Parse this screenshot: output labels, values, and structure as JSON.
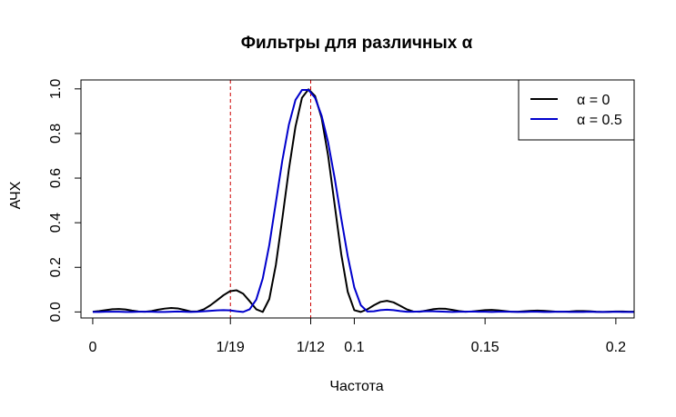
{
  "chart_data": {
    "type": "line",
    "title": "Фильтры для различных α",
    "xlabel": "Частота",
    "ylabel": "АЧХ",
    "xlim": [
      -0.0045,
      0.207
    ],
    "ylim": [
      -0.027,
      1.04
    ],
    "x_ticks": [
      {
        "value": 0,
        "label": "0"
      },
      {
        "value": 0.052632,
        "label": "1/19"
      },
      {
        "value": 0.083333,
        "label": "1/12"
      },
      {
        "value": 0.1,
        "label": "0.1"
      },
      {
        "value": 0.15,
        "label": "0.15"
      },
      {
        "value": 0.2,
        "label": "0.2"
      }
    ],
    "y_ticks": [
      {
        "value": 0,
        "label": "0.0"
      },
      {
        "value": 0.2,
        "label": "0.2"
      },
      {
        "value": 0.4,
        "label": "0.4"
      },
      {
        "value": 0.6,
        "label": "0.6"
      },
      {
        "value": 0.8,
        "label": "0.8"
      },
      {
        "value": 1.0,
        "label": "1.0"
      }
    ],
    "vlines": [
      {
        "x": 0.052632,
        "color": "#cc0000",
        "style": "dashed"
      },
      {
        "x": 0.083333,
        "color": "#cc0000",
        "style": "dashed"
      }
    ],
    "legend": {
      "position": "top-right",
      "entries": [
        {
          "label": "α = 0",
          "color": "#000000"
        },
        {
          "label": "α = 0.5",
          "color": "#0000cc"
        }
      ]
    },
    "series": [
      {
        "name": "α = 0",
        "color": "#000000",
        "x": [
          0,
          0.0025,
          0.005,
          0.0075,
          0.01,
          0.0125,
          0.015,
          0.0175,
          0.02,
          0.0225,
          0.025,
          0.0275,
          0.03,
          0.0325,
          0.035,
          0.0375,
          0.04,
          0.0425,
          0.045,
          0.0475,
          0.05,
          0.0525,
          0.055,
          0.0575,
          0.06,
          0.0625,
          0.065,
          0.0675,
          0.07,
          0.0725,
          0.075,
          0.0775,
          0.08,
          0.0825,
          0.085,
          0.0875,
          0.09,
          0.0925,
          0.095,
          0.0975,
          0.1,
          0.1025,
          0.105,
          0.1075,
          0.11,
          0.1125,
          0.115,
          0.1175,
          0.12,
          0.1225,
          0.125,
          0.1275,
          0.13,
          0.1325,
          0.135,
          0.1375,
          0.14,
          0.1425,
          0.145,
          0.1475,
          0.15,
          0.1525,
          0.155,
          0.1575,
          0.16,
          0.1625,
          0.165,
          0.1675,
          0.17,
          0.1725,
          0.175,
          0.1775,
          0.18,
          0.1825,
          0.185,
          0.1875,
          0.19,
          0.1925,
          0.195,
          0.1975,
          0.2,
          0.2025,
          0.205,
          0.207
        ],
        "y": [
          0.001,
          0.004,
          0.008,
          0.012,
          0.013,
          0.011,
          0.006,
          0.002,
          0.001,
          0.004,
          0.01,
          0.015,
          0.018,
          0.016,
          0.009,
          0.002,
          0.002,
          0.012,
          0.03,
          0.052,
          0.075,
          0.093,
          0.097,
          0.082,
          0.048,
          0.012,
          0.0,
          0.058,
          0.21,
          0.42,
          0.64,
          0.83,
          0.96,
          0.998,
          0.968,
          0.87,
          0.7,
          0.48,
          0.26,
          0.09,
          0.008,
          0.0,
          0.012,
          0.03,
          0.045,
          0.05,
          0.043,
          0.028,
          0.012,
          0.002,
          0.001,
          0.006,
          0.012,
          0.015,
          0.014,
          0.009,
          0.004,
          0.001,
          0.002,
          0.005,
          0.008,
          0.009,
          0.007,
          0.004,
          0.001,
          0.001,
          0.003,
          0.005,
          0.006,
          0.005,
          0.003,
          0.001,
          0.001,
          0.002,
          0.004,
          0.004,
          0.003,
          0.001,
          0.0,
          0.001,
          0.002,
          0.002,
          0.001,
          0.001
        ]
      },
      {
        "name": "α = 0.5",
        "color": "#0000cc",
        "x": [
          0,
          0.0025,
          0.005,
          0.0075,
          0.01,
          0.0125,
          0.015,
          0.0175,
          0.02,
          0.0225,
          0.025,
          0.0275,
          0.03,
          0.0325,
          0.035,
          0.0375,
          0.04,
          0.0425,
          0.045,
          0.0475,
          0.05,
          0.0525,
          0.055,
          0.0575,
          0.06,
          0.0625,
          0.065,
          0.0675,
          0.07,
          0.0725,
          0.075,
          0.0775,
          0.08,
          0.0825,
          0.085,
          0.0875,
          0.09,
          0.0925,
          0.095,
          0.0975,
          0.1,
          0.1025,
          0.105,
          0.1075,
          0.11,
          0.1125,
          0.115,
          0.1175,
          0.12,
          0.1225,
          0.125,
          0.1275,
          0.13,
          0.1325,
          0.135,
          0.1375,
          0.14,
          0.1425,
          0.145,
          0.1475,
          0.15,
          0.1525,
          0.155,
          0.1575,
          0.16,
          0.1625,
          0.165,
          0.1675,
          0.17,
          0.1725,
          0.175,
          0.1775,
          0.18,
          0.1825,
          0.185,
          0.1875,
          0.19,
          0.1925,
          0.195,
          0.1975,
          0.2,
          0.2025,
          0.205,
          0.207
        ],
        "y": [
          0.0,
          0.0,
          0.001,
          0.001,
          0.001,
          0.0,
          0.0,
          0.001,
          0.001,
          0.001,
          0.0,
          0.0,
          0.001,
          0.002,
          0.001,
          0.0,
          0.001,
          0.003,
          0.005,
          0.007,
          0.008,
          0.007,
          0.003,
          0.0,
          0.012,
          0.055,
          0.15,
          0.3,
          0.49,
          0.68,
          0.84,
          0.95,
          0.995,
          0.995,
          0.96,
          0.88,
          0.76,
          0.6,
          0.42,
          0.25,
          0.11,
          0.03,
          0.002,
          0.003,
          0.008,
          0.01,
          0.008,
          0.004,
          0.001,
          0.001,
          0.002,
          0.003,
          0.003,
          0.002,
          0.001,
          0.0,
          0.001,
          0.001,
          0.002,
          0.001,
          0.001,
          0.0,
          0.001,
          0.001,
          0.001,
          0.0,
          0.0,
          0.001,
          0.001,
          0.0,
          0.0,
          0.001,
          0.001,
          0.0,
          0.0,
          0.0,
          0.001,
          0.0,
          0.0,
          0.0,
          0.001,
          0.0,
          0.0,
          0.0
        ]
      }
    ]
  }
}
